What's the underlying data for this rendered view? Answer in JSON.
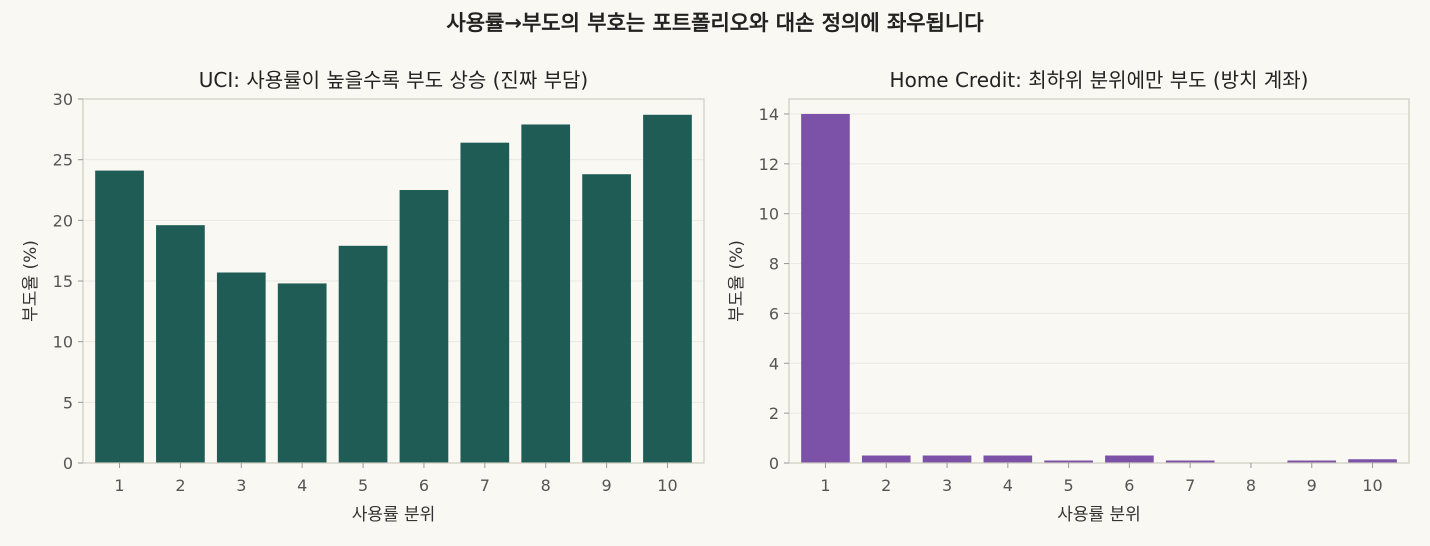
{
  "figure": {
    "suptitle": "사용률→부도의 부호는 포트폴리오와 대손 정의에 좌우됩니다"
  },
  "chart_data": [
    {
      "type": "bar",
      "title": "UCI: 사용률이 높을수록 부도 상승 (진짜 부담)",
      "xlabel": "사용률 분위",
      "ylabel": "부도율 (%)",
      "categories": [
        "1",
        "2",
        "3",
        "4",
        "5",
        "6",
        "7",
        "8",
        "9",
        "10"
      ],
      "values": [
        24.1,
        19.6,
        15.7,
        14.8,
        17.9,
        22.5,
        26.4,
        27.9,
        23.8,
        28.7
      ],
      "ylim": [
        0,
        30
      ],
      "yticks": [
        "0",
        "5",
        "10",
        "15",
        "20",
        "25",
        "30"
      ],
      "ytick_values": [
        0,
        5,
        10,
        15,
        20,
        25,
        30
      ],
      "color": "#1f5c55",
      "grid": true
    },
    {
      "type": "bar",
      "title": "Home Credit: 최하위 분위에만 부도 (방치 계좌)",
      "xlabel": "사용률 분위",
      "ylabel": "부도율 (%)",
      "categories": [
        "1",
        "2",
        "3",
        "4",
        "5",
        "6",
        "7",
        "8",
        "9",
        "10"
      ],
      "values": [
        14.0,
        0.3,
        0.3,
        0.3,
        0.1,
        0.3,
        0.1,
        0.0,
        0.1,
        0.15
      ],
      "ylim": [
        0,
        14.6
      ],
      "yticks": [
        "0",
        "2",
        "4",
        "6",
        "8",
        "10",
        "12",
        "14"
      ],
      "ytick_values": [
        0,
        2,
        4,
        6,
        8,
        10,
        12,
        14
      ],
      "color": "#7b52a8",
      "grid": true
    }
  ]
}
